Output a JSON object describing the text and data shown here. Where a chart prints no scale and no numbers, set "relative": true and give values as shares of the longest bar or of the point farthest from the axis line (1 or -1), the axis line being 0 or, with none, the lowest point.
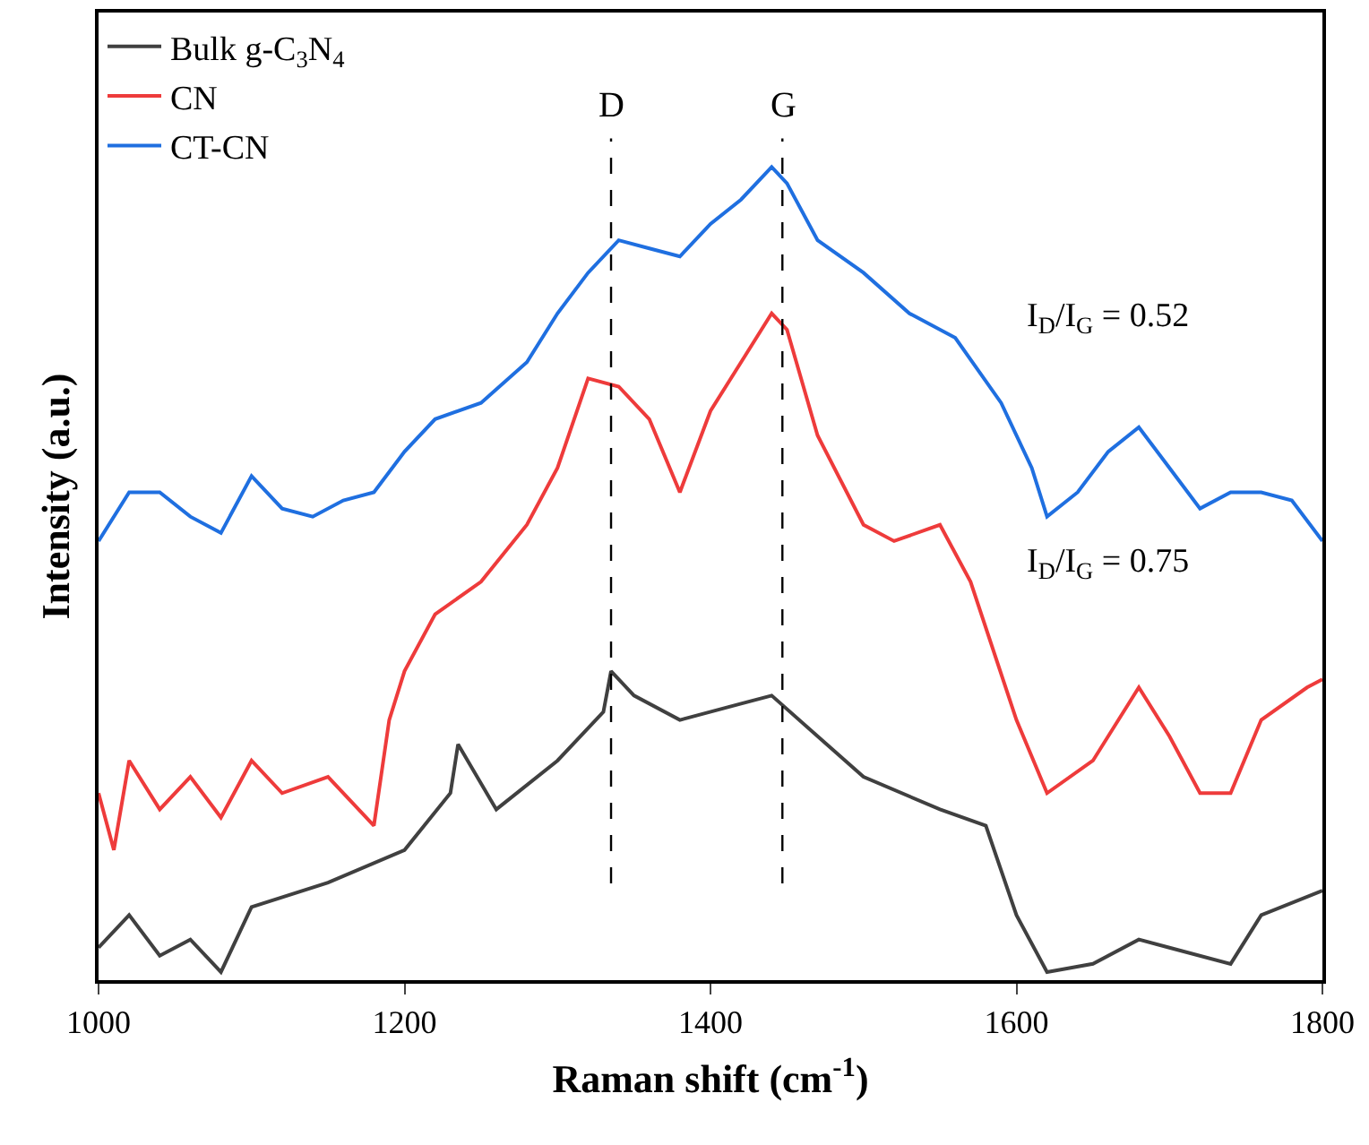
{
  "chart_data": {
    "type": "line",
    "relative": true,
    "xlabel": "Raman shift (cm$^{-1}$)",
    "ylabel": "Intensity (a.u.)",
    "xlim": [
      1000,
      1800
    ],
    "xticks": [
      1000,
      1200,
      1400,
      1600,
      1800
    ],
    "legend": "top left",
    "marker": "none",
    "line_style": "solid",
    "tick_labels": "x",
    "series": [
      {
        "name": "Bulk g-C$_{3}$N$_{4}$",
        "color": "#404040",
        "x": [
          1000,
          1020,
          1040,
          1060,
          1080,
          1100,
          1150,
          1200,
          1230,
          1235,
          1260,
          1300,
          1330,
          1335,
          1350,
          1380,
          1420,
          1440,
          1470,
          1500,
          1550,
          1580,
          1600,
          1620,
          1650,
          1680,
          1700,
          1740,
          1760,
          1800
        ],
        "values": [
          0.04,
          0.08,
          0.03,
          0.05,
          0.01,
          0.09,
          0.12,
          0.16,
          0.23,
          0.29,
          0.21,
          0.27,
          0.33,
          0.38,
          0.35,
          0.32,
          0.34,
          0.35,
          0.3,
          0.25,
          0.21,
          0.19,
          0.08,
          0.01,
          0.02,
          0.05,
          0.04,
          0.02,
          0.08,
          0.11
        ]
      },
      {
        "name": "CN",
        "color": "#ee3b3b",
        "x": [
          1000,
          1010,
          1020,
          1040,
          1060,
          1080,
          1100,
          1120,
          1150,
          1180,
          1190,
          1200,
          1220,
          1250,
          1280,
          1300,
          1320,
          1340,
          1360,
          1380,
          1400,
          1420,
          1440,
          1450,
          1470,
          1500,
          1520,
          1550,
          1570,
          1600,
          1620,
          1650,
          1680,
          1700,
          1720,
          1740,
          1760,
          1790,
          1800
        ],
        "values": [
          0.23,
          0.16,
          0.27,
          0.21,
          0.25,
          0.2,
          0.27,
          0.23,
          0.25,
          0.19,
          0.32,
          0.38,
          0.45,
          0.49,
          0.56,
          0.63,
          0.74,
          0.73,
          0.69,
          0.6,
          0.7,
          0.76,
          0.82,
          0.8,
          0.67,
          0.56,
          0.54,
          0.56,
          0.49,
          0.32,
          0.23,
          0.27,
          0.36,
          0.3,
          0.23,
          0.23,
          0.32,
          0.36,
          0.37
        ]
      },
      {
        "name": "CT-CN",
        "color": "#1f6fe0",
        "x": [
          1000,
          1020,
          1040,
          1060,
          1080,
          1100,
          1120,
          1140,
          1160,
          1180,
          1200,
          1220,
          1250,
          1280,
          1300,
          1320,
          1340,
          1360,
          1380,
          1400,
          1420,
          1440,
          1450,
          1470,
          1500,
          1530,
          1560,
          1590,
          1610,
          1620,
          1640,
          1660,
          1680,
          1700,
          1720,
          1740,
          1760,
          1780,
          1800
        ],
        "values": [
          0.54,
          0.6,
          0.6,
          0.57,
          0.55,
          0.62,
          0.58,
          0.57,
          0.59,
          0.6,
          0.65,
          0.69,
          0.71,
          0.76,
          0.82,
          0.87,
          0.91,
          0.9,
          0.89,
          0.93,
          0.96,
          1.0,
          0.98,
          0.91,
          0.87,
          0.82,
          0.79,
          0.71,
          0.63,
          0.57,
          0.6,
          0.65,
          0.68,
          0.63,
          0.58,
          0.6,
          0.6,
          0.59,
          0.54
        ]
      }
    ],
    "ref_lines": [
      {
        "axis": "x",
        "value": 1335,
        "label": "D",
        "color": "#000000",
        "line_style": "dashed"
      },
      {
        "axis": "x",
        "value": 1447,
        "label": "G",
        "color": "#000000",
        "line_style": "dashed"
      }
    ],
    "annotations": [
      "I$_{D}$/I$_{G}$ = 0.52",
      "I$_{D}$/I$_{G}$ = 0.75"
    ]
  }
}
